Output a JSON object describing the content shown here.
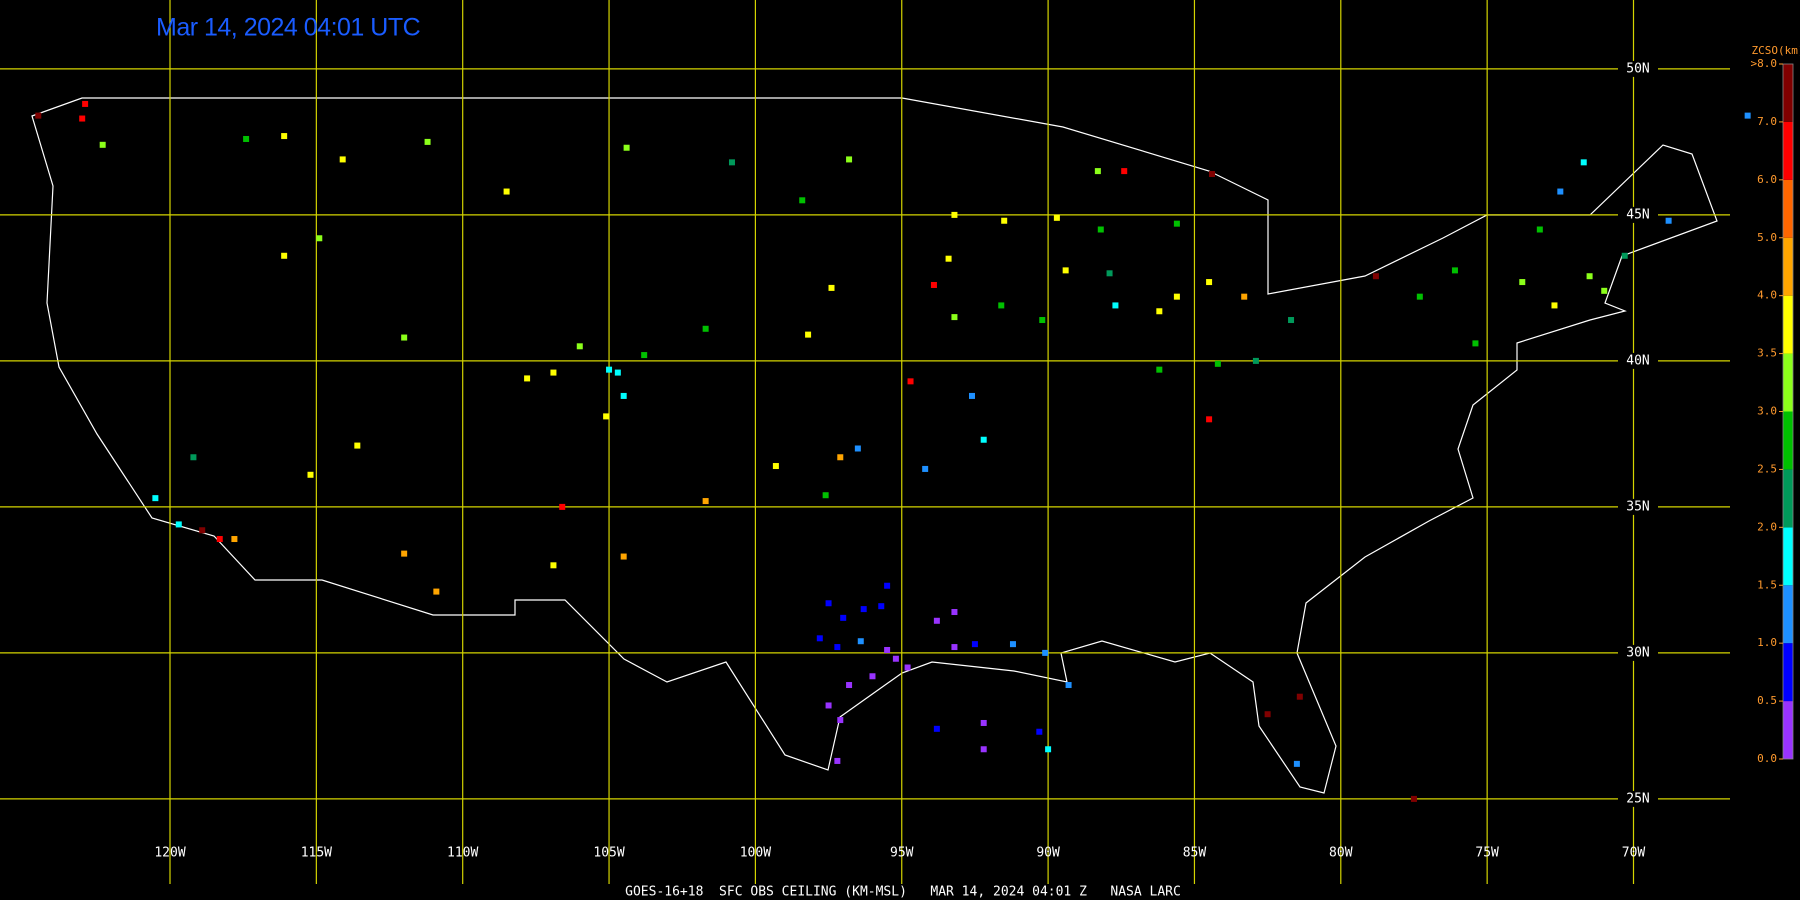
{
  "title": "Mar 14, 2024 04:01 UTC",
  "footer": "GOES-16+18  SFC OBS CEILING (KM-MSL)   MAR 14, 2024 04:01 Z   NASA LARC",
  "grid": {
    "lons": [
      {
        "value": -120,
        "label": "120W"
      },
      {
        "value": -115,
        "label": "115W"
      },
      {
        "value": -110,
        "label": "110W"
      },
      {
        "value": -105,
        "label": "105W"
      },
      {
        "value": -100,
        "label": "100W"
      },
      {
        "value": -95,
        "label": "95W"
      },
      {
        "value": -90,
        "label": "90W"
      },
      {
        "value": -85,
        "label": "85W"
      },
      {
        "value": -80,
        "label": "80W"
      },
      {
        "value": -75,
        "label": "75W"
      },
      {
        "value": -70,
        "label": "70W"
      }
    ],
    "lats": [
      {
        "value": 50,
        "label": "50N"
      },
      {
        "value": 45,
        "label": "45N"
      },
      {
        "value": 40,
        "label": "40N"
      },
      {
        "value": 35,
        "label": "35N"
      },
      {
        "value": 30,
        "label": "30N"
      },
      {
        "value": 25,
        "label": "25N"
      }
    ]
  },
  "colorbar": {
    "title": "ZCSO(km)",
    "ticks": [
      {
        "value": 0,
        "label": "0.0"
      },
      {
        "value": 0.5,
        "label": "0.5"
      },
      {
        "value": 1,
        "label": "1.0"
      },
      {
        "value": 1.5,
        "label": "1.5"
      },
      {
        "value": 2,
        "label": "2.0"
      },
      {
        "value": 2.5,
        "label": "2.5"
      },
      {
        "value": 3,
        "label": "3.0"
      },
      {
        "value": 3.5,
        "label": "3.5"
      },
      {
        "value": 4,
        "label": "4.0"
      },
      {
        "value": 5,
        "label": "5.0"
      },
      {
        "value": 6,
        "label": "6.0"
      },
      {
        "value": 7,
        "label": "7.0"
      },
      {
        "value": 8,
        "label": ">8.0"
      }
    ],
    "colors": [
      "#9933ff",
      "#0000ff",
      "#1e90ff",
      "#00ffff",
      "#00995a",
      "#00c000",
      "#8cff1a",
      "#ffff00",
      "#ffa500",
      "#ff6600",
      "#ff0000",
      "#800000"
    ]
  },
  "stations": [
    {
      "lon": -97.5,
      "lat": 31.7,
      "ceiling": 0.8
    },
    {
      "lon": -97,
      "lat": 31.2,
      "ceiling": 0.9
    },
    {
      "lon": -96.3,
      "lat": 31.5,
      "ceiling": 0.7
    },
    {
      "lon": -97.8,
      "lat": 30.5,
      "ceiling": 0.9
    },
    {
      "lon": -97.2,
      "lat": 30.2,
      "ceiling": 0.8
    },
    {
      "lon": -96.4,
      "lat": 30.4,
      "ceiling": 1.2
    },
    {
      "lon": -95.5,
      "lat": 30.1,
      "ceiling": 0.3
    },
    {
      "lon": -95.2,
      "lat": 29.8,
      "ceiling": 0.2
    },
    {
      "lon": -94.8,
      "lat": 29.5,
      "ceiling": 0.3
    },
    {
      "lon": -96,
      "lat": 29.2,
      "ceiling": 0.4
    },
    {
      "lon": -96.8,
      "lat": 28.9,
      "ceiling": 0.3
    },
    {
      "lon": -97.5,
      "lat": 28.2,
      "ceiling": 0.3
    },
    {
      "lon": -97.1,
      "lat": 27.7,
      "ceiling": 0.3
    },
    {
      "lon": -97.2,
      "lat": 26.3,
      "ceiling": 0.4
    },
    {
      "lon": -93.8,
      "lat": 31.1,
      "ceiling": 0.3
    },
    {
      "lon": -93.2,
      "lat": 31.4,
      "ceiling": 0.2
    },
    {
      "lon": -93.2,
      "lat": 30.2,
      "ceiling": 0.3
    },
    {
      "lon": -92.5,
      "lat": 30.3,
      "ceiling": 0.9
    },
    {
      "lon": -91.2,
      "lat": 30.3,
      "ceiling": 1.2
    },
    {
      "lon": -90.1,
      "lat": 30,
      "ceiling": 1.2
    },
    {
      "lon": -89.3,
      "lat": 28.9,
      "ceiling": 1.3
    },
    {
      "lon": -93.8,
      "lat": 27.4,
      "ceiling": 0.8
    },
    {
      "lon": -92.2,
      "lat": 27.6,
      "ceiling": 0.4
    },
    {
      "lon": -92.2,
      "lat": 26.7,
      "ceiling": 0.3
    },
    {
      "lon": -90.3,
      "lat": 27.3,
      "ceiling": 0.7
    },
    {
      "lon": -90,
      "lat": 26.7,
      "ceiling": 1.7
    },
    {
      "lon": -95.5,
      "lat": 32.3,
      "ceiling": 0.8
    },
    {
      "lon": -95.7,
      "lat": 31.6,
      "ceiling": 0.9
    },
    {
      "lon": -105,
      "lat": 39.7,
      "ceiling": 1.7
    },
    {
      "lon": -104.7,
      "lat": 39.6,
      "ceiling": 1.9
    },
    {
      "lon": -104.5,
      "lat": 38.8,
      "ceiling": 1.6
    },
    {
      "lon": -105.1,
      "lat": 38.1,
      "ceiling": 3.8
    },
    {
      "lon": -106.9,
      "lat": 39.6,
      "ceiling": 3.7
    },
    {
      "lon": -107.8,
      "lat": 39.4,
      "ceiling": 3.8
    },
    {
      "lon": -106,
      "lat": 40.5,
      "ceiling": 3.2
    },
    {
      "lon": -103.8,
      "lat": 40.2,
      "ceiling": 2.5
    },
    {
      "lon": -101.7,
      "lat": 41.1,
      "ceiling": 2.9
    },
    {
      "lon": -98.2,
      "lat": 40.9,
      "ceiling": 3.7
    },
    {
      "lon": -97.4,
      "lat": 42.5,
      "ceiling": 3.8
    },
    {
      "lon": -100.8,
      "lat": 46.8,
      "ceiling": 2.4
    },
    {
      "lon": -96.8,
      "lat": 46.9,
      "ceiling": 3.0
    },
    {
      "lon": -98.4,
      "lat": 45.5,
      "ceiling": 2.7
    },
    {
      "lon": -104.4,
      "lat": 47.3,
      "ceiling": 3.0
    },
    {
      "lon": -108.5,
      "lat": 45.8,
      "ceiling": 3.7
    },
    {
      "lon": -111.2,
      "lat": 47.5,
      "ceiling": 3.0
    },
    {
      "lon": -116.1,
      "lat": 47.7,
      "ceiling": 3.5
    },
    {
      "lon": -117.4,
      "lat": 47.6,
      "ceiling": 2.6
    },
    {
      "lon": -114.1,
      "lat": 46.9,
      "ceiling": 3.6
    },
    {
      "lon": -112,
      "lat": 33.4,
      "ceiling": 4.2
    },
    {
      "lon": -110.9,
      "lat": 32.1,
      "ceiling": 4.7
    },
    {
      "lon": -115.2,
      "lat": 36.1,
      "ceiling": 3.8
    },
    {
      "lon": -117.8,
      "lat": 33.9,
      "ceiling": 4.8
    },
    {
      "lon": -118.3,
      "lat": 33.9,
      "ceiling": 6.8
    },
    {
      "lon": -118.9,
      "lat": 34.2,
      "ceiling": 7.8
    },
    {
      "lon": -120.5,
      "lat": 35.3,
      "ceiling": 1.9
    },
    {
      "lon": -119.7,
      "lat": 34.4,
      "ceiling": 1.6
    },
    {
      "lon": -106.6,
      "lat": 35.0,
      "ceiling": 6.5
    },
    {
      "lon": -104.5,
      "lat": 33.3,
      "ceiling": 4.8
    },
    {
      "lon": -106.9,
      "lat": 33.0,
      "ceiling": 3.5
    },
    {
      "lon": -101.7,
      "lat": 35.2,
      "ceiling": 4.0
    },
    {
      "lon": -99.3,
      "lat": 36.4,
      "ceiling": 3.9
    },
    {
      "lon": -97.6,
      "lat": 35.4,
      "ceiling": 2.6
    },
    {
      "lon": -97.1,
      "lat": 36.7,
      "ceiling": 4.5
    },
    {
      "lon": -94.7,
      "lat": 39.3,
      "ceiling": 6.8
    },
    {
      "lon": -96.5,
      "lat": 37.0,
      "ceiling": 1.3
    },
    {
      "lon": -94.2,
      "lat": 36.3,
      "ceiling": 1.4
    },
    {
      "lon": -92.6,
      "lat": 38.8,
      "ceiling": 1.2
    },
    {
      "lon": -92.2,
      "lat": 37.3,
      "ceiling": 1.7
    },
    {
      "lon": -93.2,
      "lat": 45.0,
      "ceiling": 3.7
    },
    {
      "lon": -93.4,
      "lat": 43.5,
      "ceiling": 3.8
    },
    {
      "lon": -91.5,
      "lat": 44.8,
      "ceiling": 3.9
    },
    {
      "lon": -89.7,
      "lat": 44.9,
      "ceiling": 3.8
    },
    {
      "lon": -88.2,
      "lat": 44.5,
      "ceiling": 2.6
    },
    {
      "lon": -87.9,
      "lat": 43.0,
      "ceiling": 2.3
    },
    {
      "lon": -90.2,
      "lat": 41.4,
      "ceiling": 2.5
    },
    {
      "lon": -89.4,
      "lat": 43.1,
      "ceiling": 3.9
    },
    {
      "lon": -87.7,
      "lat": 41.9,
      "ceiling": 1.8
    },
    {
      "lon": -86.2,
      "lat": 41.7,
      "ceiling": 3.9
    },
    {
      "lon": -85.6,
      "lat": 42.2,
      "ceiling": 3.8
    },
    {
      "lon": -84.5,
      "lat": 42.7,
      "ceiling": 3.8
    },
    {
      "lon": -83.3,
      "lat": 42.2,
      "ceiling": 4.5
    },
    {
      "lon": -86.2,
      "lat": 39.7,
      "ceiling": 2.8
    },
    {
      "lon": -84.2,
      "lat": 39.9,
      "ceiling": 2.9
    },
    {
      "lon": -82.9,
      "lat": 40,
      "ceiling": 2.2
    },
    {
      "lon": -81.7,
      "lat": 41.4,
      "ceiling": 2.4
    },
    {
      "lon": -84.5,
      "lat": 38.0,
      "ceiling": 6.7
    },
    {
      "lon": -88.3,
      "lat": 46.5,
      "ceiling": 3.2
    },
    {
      "lon": -87.4,
      "lat": 46.5,
      "ceiling": 6.9
    },
    {
      "lon": -84.4,
      "lat": 46.4,
      "ceiling": 7.0
    },
    {
      "lon": -85.6,
      "lat": 44.7,
      "ceiling": 2.5
    },
    {
      "lon": -93.2,
      "lat": 41.5,
      "ceiling": 3.0
    },
    {
      "lon": -91.6,
      "lat": 41.9,
      "ceiling": 2.6
    },
    {
      "lon": -93.9,
      "lat": 42.6,
      "ceiling": 6.5
    },
    {
      "lon": -76.1,
      "lat": 43.1,
      "ceiling": 2.9
    },
    {
      "lon": -73.8,
      "lat": 42.7,
      "ceiling": 3.4
    },
    {
      "lon": -72.7,
      "lat": 41.9,
      "ceiling": 3.6
    },
    {
      "lon": -71.5,
      "lat": 42.9,
      "ceiling": 3.4
    },
    {
      "lon": -71,
      "lat": 42.4,
      "ceiling": 3.3
    },
    {
      "lon": -70.3,
      "lat": 43.6,
      "ceiling": 2.1
    },
    {
      "lon": -73.2,
      "lat": 44.5,
      "ceiling": 2.8
    },
    {
      "lon": -77.3,
      "lat": 42.2,
      "ceiling": 2.8
    },
    {
      "lon": -75.4,
      "lat": 40.6,
      "ceiling": 2.6
    },
    {
      "lon": -78.8,
      "lat": 42.9,
      "ceiling": 7.3
    },
    {
      "lon": -72.5,
      "lat": 45.8,
      "ceiling": 1.4
    },
    {
      "lon": -68.8,
      "lat": 44.8,
      "ceiling": 1.3
    },
    {
      "lon": -71.7,
      "lat": 46.8,
      "ceiling": 1.5
    },
    {
      "lon": -66.1,
      "lat": 48.4,
      "ceiling": 1.4
    },
    {
      "lon": -82.5,
      "lat": 27.9,
      "ceiling": 7.8
    },
    {
      "lon": -81.4,
      "lat": 28.5,
      "ceiling": 7.7
    },
    {
      "lon": -81.5,
      "lat": 26.2,
      "ceiling": 1.0
    },
    {
      "lon": -77.5,
      "lat": 25.0,
      "ceiling": 7.0
    },
    {
      "lon": -122.3,
      "lat": 47.4,
      "ceiling": 3.2
    },
    {
      "lon": -123,
      "lat": 48.3,
      "ceiling": 6.8
    },
    {
      "lon": -124.5,
      "lat": 48.4,
      "ceiling": 7.2
    },
    {
      "lon": -122.9,
      "lat": 48.8,
      "ceiling": 6.9
    },
    {
      "lon": -114.9,
      "lat": 44.2,
      "ceiling": 3.4
    },
    {
      "lon": -116.1,
      "lat": 43.6,
      "ceiling": 3.6
    },
    {
      "lon": -112,
      "lat": 40.8,
      "ceiling": 3.0
    },
    {
      "lon": -113.6,
      "lat": 37.1,
      "ceiling": 3.7
    },
    {
      "lon": -119.2,
      "lat": 36.7,
      "ceiling": 2.0
    }
  ]
}
